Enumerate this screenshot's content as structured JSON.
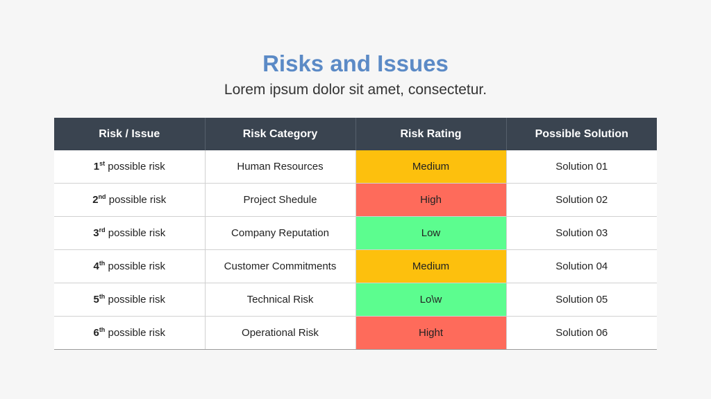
{
  "header": {
    "title": "Risks and Issues",
    "subtitle": "Lorem ipsum dolor sit amet, consectetur."
  },
  "table": {
    "columns": [
      "Risk / Issue",
      "Risk Category",
      "Risk Rating",
      "Possible Solution"
    ],
    "rows": [
      {
        "num": "1",
        "suffix": "st",
        "risk": " possible risk",
        "category": "Human Resources",
        "rating": "Medium",
        "level": "medium",
        "rating_color": "#fdc00d",
        "solution": "Solution 01"
      },
      {
        "num": "2",
        "suffix": "nd",
        "risk": " possible risk",
        "category": "Project Shedule",
        "rating": "High",
        "level": "high",
        "rating_color": "#fe6b5b",
        "solution": "Solution 02"
      },
      {
        "num": "3",
        "suffix": "rd",
        "risk": " possible risk",
        "category": "Company Reputation",
        "rating": "Low",
        "level": "low",
        "rating_color": "#5cfd8f",
        "solution": "Solution 03"
      },
      {
        "num": "4",
        "suffix": "th",
        "risk": " possible risk",
        "category": "Customer Commitments",
        "rating": "Medium",
        "level": "medium",
        "rating_color": "#fdc00d",
        "solution": "Solution 04"
      },
      {
        "num": "5",
        "suffix": "th",
        "risk": " possible risk",
        "category": "Technical Risk",
        "rating": "Lo\\w",
        "level": "low",
        "rating_color": "#5cfd8f",
        "solution": "Solution 05"
      },
      {
        "num": "6",
        "suffix": "th",
        "risk": " possible risk",
        "category": "Operational Risk",
        "rating": "Hight",
        "level": "high",
        "rating_color": "#fe6b5b",
        "solution": "Solution 06"
      }
    ]
  }
}
